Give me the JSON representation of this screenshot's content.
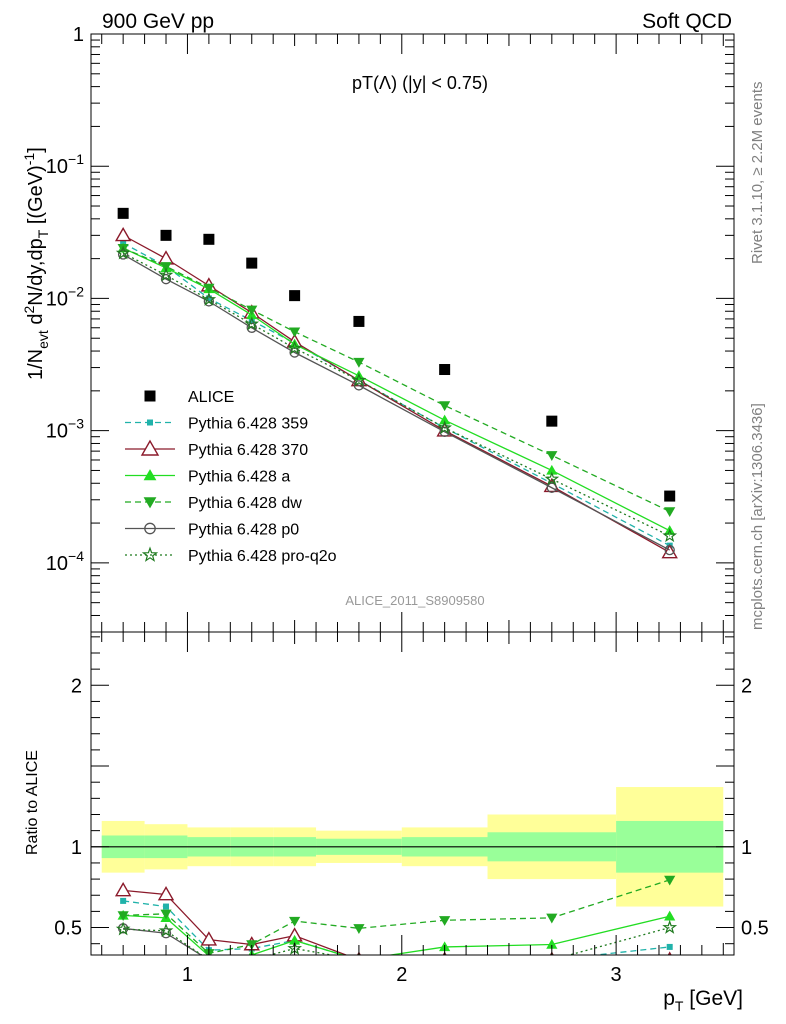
{
  "header": {
    "left": "900 GeV pp",
    "right": "Soft QCD"
  },
  "side_labels": {
    "rivet": "Rivet 3.1.10, ≥ 2.2M events",
    "mcplots": "mcplots.cern.ch [arXiv:1306.3436]"
  },
  "analysis_id": "ALICE_2011_S8909580",
  "chart_data": [
    {
      "type": "scatter",
      "title": "pT(Λ) (|y| < 0.75)",
      "ylabel": "1/N_evt d²N/dy,dp_T [(GeV)⁻¹]",
      "ylabel_parts": {
        "a": "1/N",
        "b": "evt",
        "c": " d",
        "d": "2",
        "e": "N/dy,dp",
        "f": "T",
        "g": " [(GeV)",
        "h": "-1",
        "i": "]"
      },
      "xlabel": "p_T [GeV]",
      "xlabel_parts": {
        "a": "p",
        "b": "T",
        "c": " [GeV]"
      },
      "yscale": "log",
      "xlim": [
        0.55,
        3.55
      ],
      "ylim": [
        3e-05,
        1.0
      ],
      "y_tick_labels": [
        {
          "v": 1,
          "mant": "1",
          "exp": ""
        },
        {
          "v": 0.1,
          "mant": "10",
          "exp": "−1"
        },
        {
          "v": 0.01,
          "mant": "10",
          "exp": "−2"
        },
        {
          "v": 0.001,
          "mant": "10",
          "exp": "−3"
        },
        {
          "v": 0.0001,
          "mant": "10",
          "exp": "−4"
        }
      ],
      "x_tick_labels": [
        {
          "v": 1,
          "label": "1"
        },
        {
          "v": 2,
          "label": "2"
        },
        {
          "v": 3,
          "label": "3"
        }
      ],
      "x": [
        0.7,
        0.9,
        1.1,
        1.3,
        1.5,
        1.8,
        2.2,
        2.7,
        3.25
      ],
      "legend_position": "lower-left",
      "series": [
        {
          "name": "ALICE",
          "marker": "square",
          "line": "none",
          "color": "#000000",
          "values": [
            0.044,
            0.03,
            0.028,
            0.0185,
            0.0105,
            0.0067,
            0.0029,
            0.00118,
            0.00032
          ]
        },
        {
          "name": "Pythia 6.428 359",
          "marker": "small-square",
          "line": "dashed",
          "color": "#20b2aa",
          "values": [
            0.0262,
            0.0175,
            0.01,
            0.0068,
            0.0046,
            0.0024,
            0.00105,
            0.0004,
            0.000135
          ]
        },
        {
          "name": "Pythia 6.428 370",
          "marker": "open-triangle",
          "line": "solid",
          "color": "#8b1a2b",
          "values": [
            0.03,
            0.02,
            0.0125,
            0.0078,
            0.0047,
            0.0024,
            0.001,
            0.00038,
            0.00012
          ]
        },
        {
          "name": "Pythia 6.428 a",
          "marker": "triangle",
          "line": "solid",
          "color": "#22dd22",
          "values": [
            0.024,
            0.017,
            0.0118,
            0.0075,
            0.0045,
            0.0026,
            0.0012,
            0.0005,
            0.000175
          ]
        },
        {
          "name": "Pythia 6.428 dw",
          "marker": "down-triangle",
          "line": "dashed",
          "color": "#22aa22",
          "values": [
            0.024,
            0.0175,
            0.012,
            0.0082,
            0.0056,
            0.0033,
            0.00155,
            0.00065,
            0.000245
          ]
        },
        {
          "name": "Pythia 6.428 p0",
          "marker": "open-circle",
          "line": "solid",
          "color": "#555555",
          "values": [
            0.0215,
            0.014,
            0.0095,
            0.006,
            0.0039,
            0.0022,
            0.00098,
            0.00037,
            0.000125
          ]
        },
        {
          "name": "Pythia 6.428 pro-q2o",
          "marker": "open-star",
          "line": "dotted",
          "color": "#1f7a1f",
          "values": [
            0.022,
            0.015,
            0.0098,
            0.0064,
            0.0042,
            0.0024,
            0.00105,
            0.00043,
            0.00016
          ]
        }
      ]
    },
    {
      "type": "scatter",
      "ylabel": "Ratio to ALICE",
      "xlim": [
        0.55,
        3.55
      ],
      "ylim": [
        0.33,
        2.33
      ],
      "y_tick_labels": [
        {
          "v": 0.5,
          "label": "0.5"
        },
        {
          "v": 1,
          "label": "1"
        },
        {
          "v": 2,
          "label": "2"
        }
      ],
      "reference_line": 1,
      "bins": [
        {
          "lo": 0.6,
          "hi": 0.8,
          "stat": 0.07,
          "tot": 0.16
        },
        {
          "lo": 0.8,
          "hi": 1.0,
          "stat": 0.07,
          "tot": 0.14
        },
        {
          "lo": 1.0,
          "hi": 1.2,
          "stat": 0.06,
          "tot": 0.12
        },
        {
          "lo": 1.2,
          "hi": 1.4,
          "stat": 0.06,
          "tot": 0.12
        },
        {
          "lo": 1.4,
          "hi": 1.6,
          "stat": 0.06,
          "tot": 0.12
        },
        {
          "lo": 1.6,
          "hi": 2.0,
          "stat": 0.05,
          "tot": 0.1
        },
        {
          "lo": 2.0,
          "hi": 2.4,
          "stat": 0.06,
          "tot": 0.12
        },
        {
          "lo": 2.4,
          "hi": 3.0,
          "stat": 0.09,
          "tot": 0.2
        },
        {
          "lo": 3.0,
          "hi": 3.5,
          "stat": 0.16,
          "tot": 0.37
        }
      ],
      "band_colors": {
        "stat": "#99ff99",
        "total": "#ffff99"
      },
      "x": [
        0.7,
        0.9,
        1.1,
        1.3,
        1.5,
        1.8,
        2.2,
        2.7,
        3.25
      ],
      "series": [
        {
          "name": "Pythia 6.428 359",
          "values": [
            0.665,
            0.63,
            0.36,
            0.37,
            0.42,
            0.3,
            0.3,
            0.3,
            0.38
          ]
        },
        {
          "name": "Pythia 6.428 370",
          "values": [
            0.73,
            0.705,
            0.425,
            0.395,
            0.45,
            0.3,
            0.3,
            0.3,
            0.3
          ]
        },
        {
          "name": "Pythia 6.428 a",
          "values": [
            0.575,
            0.56,
            0.325,
            0.33,
            0.42,
            0.3,
            0.38,
            0.395,
            0.57
          ]
        },
        {
          "name": "Pythia 6.428 dw",
          "values": [
            0.575,
            0.585,
            0.34,
            0.395,
            0.54,
            0.495,
            0.545,
            0.56,
            0.795
          ]
        },
        {
          "name": "Pythia 6.428 p0",
          "values": [
            0.495,
            0.465,
            0.3,
            0.3,
            0.3,
            0.3,
            0.3,
            0.3,
            0.3
          ]
        },
        {
          "name": "Pythia 6.428 pro-q2o",
          "values": [
            0.49,
            0.48,
            0.3,
            0.3,
            0.37,
            0.3,
            0.3,
            0.3,
            0.5
          ]
        }
      ]
    }
  ]
}
